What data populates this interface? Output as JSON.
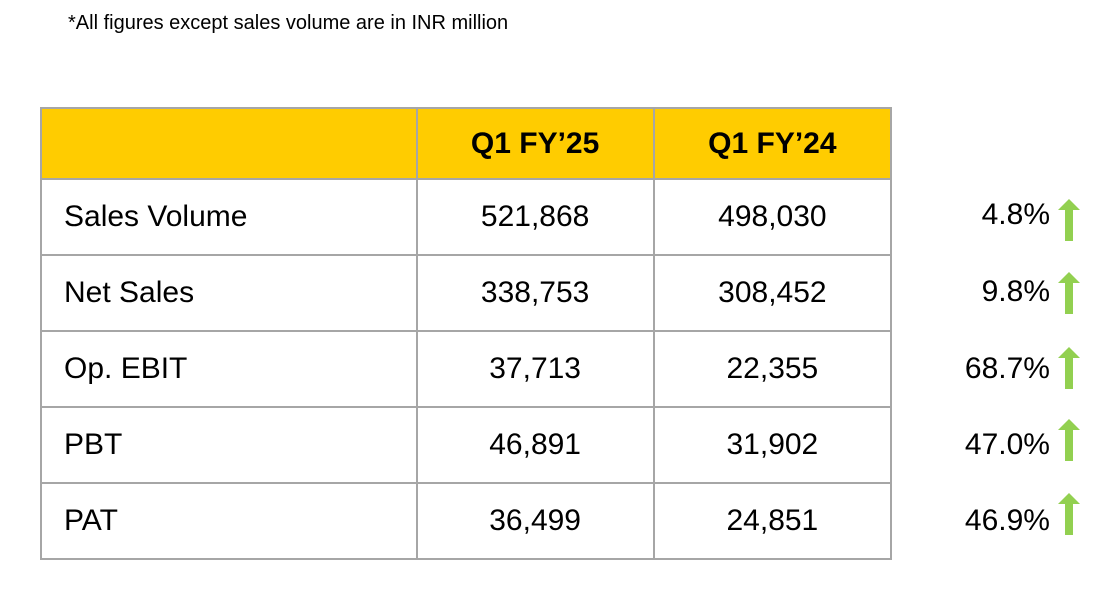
{
  "note": "*All figures except sales volume are in INR million",
  "headers": [
    "",
    "Q1 FY’25",
    "Q1 FY’24"
  ],
  "rows": [
    {
      "label": "Sales Volume",
      "q1fy25": "521,868",
      "q1fy24": "498,030",
      "change": "4.8%",
      "trend": "up"
    },
    {
      "label": "Net Sales",
      "q1fy25": "338,753",
      "q1fy24": "308,452",
      "change": "9.8%",
      "trend": "up"
    },
    {
      "label": "Op. EBIT",
      "q1fy25": "37,713",
      "q1fy24": "22,355",
      "change": "68.7%",
      "trend": "up"
    },
    {
      "label": "PBT",
      "q1fy25": "46,891",
      "q1fy24": "31,902",
      "change": "47.0%",
      "trend": "up"
    },
    {
      "label": "PAT",
      "q1fy25": "36,499",
      "q1fy24": "24,851",
      "change": "46.9%",
      "trend": "up"
    }
  ],
  "colors": {
    "header": "#ffcc00",
    "arrow": "#92d050"
  }
}
